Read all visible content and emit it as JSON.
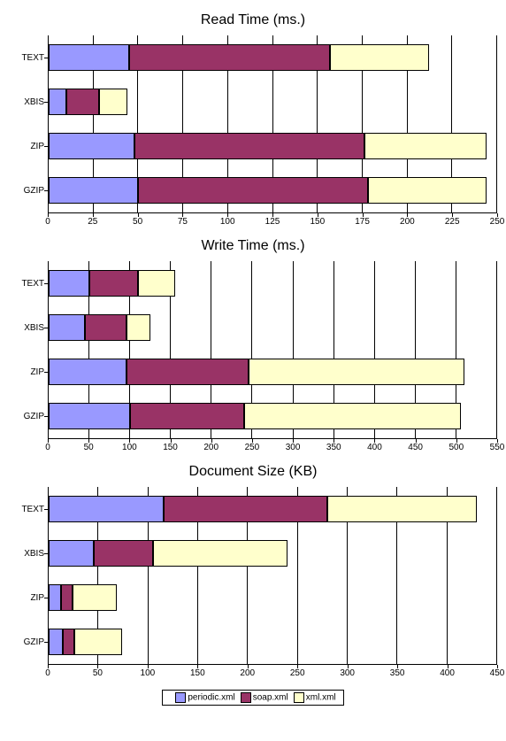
{
  "legend": {
    "items": [
      {
        "label": "periodic.xml",
        "color": "#9999ff"
      },
      {
        "label": "soap.xml",
        "color": "#993366"
      },
      {
        "label": "xml.xml",
        "color": "#ffffcc"
      }
    ]
  },
  "charts": [
    {
      "title": "Read Time (ms.)",
      "xmax": 250,
      "xtick_step": 25,
      "categories": [
        "TEXT",
        "XBIS",
        "ZIP",
        "GZIP"
      ],
      "series": [
        {
          "name": "periodic.xml",
          "color": "#9999ff",
          "values": [
            45,
            10,
            48,
            50
          ]
        },
        {
          "name": "soap.xml",
          "color": "#993366",
          "values": [
            112,
            18,
            128,
            128
          ]
        },
        {
          "name": "xml.xml",
          "color": "#ffffcc",
          "values": [
            55,
            16,
            68,
            66
          ]
        }
      ]
    },
    {
      "title": "Write Time (ms.)",
      "xmax": 550,
      "xtick_step": 50,
      "categories": [
        "TEXT",
        "XBIS",
        "ZIP",
        "GZIP"
      ],
      "series": [
        {
          "name": "periodic.xml",
          "color": "#9999ff",
          "values": [
            50,
            45,
            95,
            100
          ]
        },
        {
          "name": "soap.xml",
          "color": "#993366",
          "values": [
            60,
            50,
            150,
            140
          ]
        },
        {
          "name": "xml.xml",
          "color": "#ffffcc",
          "values": [
            45,
            30,
            265,
            265
          ]
        }
      ]
    },
    {
      "title": "Document Size (KB)",
      "xmax": 450,
      "xtick_step": 50,
      "categories": [
        "TEXT",
        "XBIS",
        "ZIP",
        "GZIP"
      ],
      "series": [
        {
          "name": "periodic.xml",
          "color": "#9999ff",
          "values": [
            115,
            45,
            12,
            14
          ]
        },
        {
          "name": "soap.xml",
          "color": "#993366",
          "values": [
            165,
            60,
            12,
            12
          ]
        },
        {
          "name": "xml.xml",
          "color": "#ffffcc",
          "values": [
            150,
            135,
            44,
            48
          ]
        }
      ]
    }
  ],
  "style": {
    "background_color": "#ffffff",
    "grid_color": "#000000",
    "title_fontsize": 16,
    "axis_fontsize": 10,
    "legend_fontsize": 10,
    "bar_border": "#000000"
  }
}
